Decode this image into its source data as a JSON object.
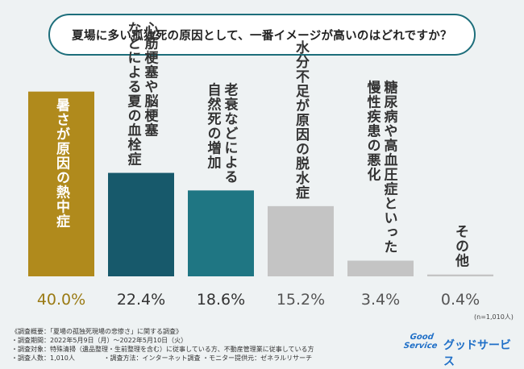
{
  "title": "夏場に多い孤独死の原因として、一番イメージが高いのはどれですか？",
  "chart_data": {
    "type": "bar",
    "ylim": [
      0,
      45
    ],
    "categories": [
      "暑さが原因の熱中症",
      "心筋梗塞や脳梗塞などによる夏の血栓症",
      "老衰などによる自然死の増加",
      "水分不足が原因の脱水症",
      "糖尿病や高血圧症といった慢性疾患の悪化",
      "その他"
    ],
    "values": [
      40.0,
      22.4,
      18.6,
      15.2,
      3.4,
      0.4
    ],
    "value_labels": [
      "40.0%",
      "22.4%",
      "18.6%",
      "15.2%",
      "3.4%",
      "0.4%"
    ],
    "label_lines": [
      [
        "暑さが原因の熱中症"
      ],
      [
        "心筋梗塞や脳梗塞",
        "などによる夏の血栓症"
      ],
      [
        "老衰などによる",
        "自然死の増加"
      ],
      [
        "水分不足が原因の脱水症"
      ],
      [
        "糖尿病や高血圧症といった",
        "慢性疾患の悪化"
      ],
      [
        "その他"
      ]
    ],
    "bar_colors": [
      "#b08a1c",
      "#17596b",
      "#1f7683",
      "#c4c4c4",
      "#c4c4c4",
      "#c4c4c4"
    ],
    "value_colors": [
      "#9a7a13",
      "#333333",
      "#333333",
      "#555555",
      "#555555",
      "#555555"
    ],
    "label_colors": [
      "#ffffff",
      "#222222",
      "#ffffff",
      "#333333",
      "#333333",
      "#333333"
    ]
  },
  "sample_size": "(n=1,010人)",
  "footer": {
    "summary": "《調査概要：「夏場の孤独死現場の悲惨さ」に関する調査》",
    "period": "・調査期間：2022年5月9日（月）～2022年5月10日（火）",
    "target": "・調査対象：特殊清掃（遺品整理・生前整理を含む）に従事している方、不動産管理業に従事している方",
    "count": "・調査人数：1,010人",
    "method": "・調査方法：インターネット調査",
    "provider": "・モニター提供元：ゼネラルリサーチ"
  },
  "brand": {
    "logo_line1": "Good",
    "logo_line2": "Service",
    "name": "グッドサービス"
  }
}
